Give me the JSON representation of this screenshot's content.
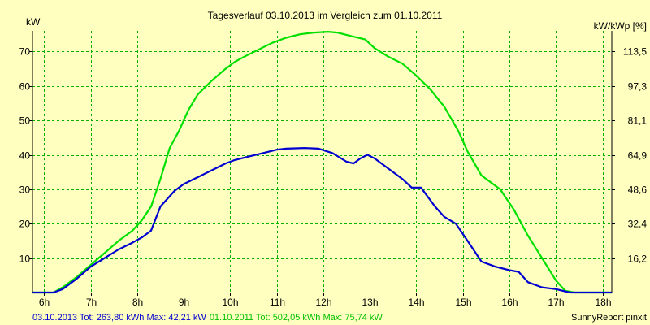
{
  "colors": {
    "background": "#ffffc0",
    "grid": "#00b000",
    "series_2013": "#0000d0",
    "series_2011": "#00e000",
    "axis": "#000000"
  },
  "footer": {
    "legend_2013": "03.10.2013 Tot: 263,80 kWh Max: 42,21 kW",
    "legend_2011": "01.10.2011 Tot: 502,05 kWh Max: 75,74 kW",
    "credit": "SunnyReport pinxit"
  },
  "chart_data": {
    "type": "line",
    "title": "Tagesverlauf 03.10.2013 im Vergleich zum 01.10.2011",
    "ylabel": "kW",
    "ylabel_right": "kW/kWp [%]",
    "xlim": [
      5.75,
      18.2
    ],
    "ylim": [
      0,
      76
    ],
    "x_ticks": [
      6,
      7,
      8,
      9,
      10,
      11,
      12,
      13,
      14,
      15,
      16,
      17,
      18
    ],
    "x_tick_labels": [
      "6h",
      "7h",
      "8h",
      "9h",
      "10h",
      "11h",
      "12h",
      "13h",
      "14h",
      "15h",
      "16h",
      "17h",
      "18h"
    ],
    "y_ticks": [
      10,
      20,
      30,
      40,
      50,
      60,
      70
    ],
    "y_tick_labels": [
      "10",
      "20",
      "30",
      "40",
      "50",
      "60",
      "70"
    ],
    "y2_tick_labels": [
      "16,2",
      "32,4",
      "48,6",
      "64,9",
      "81,1",
      "97,3",
      "113,5"
    ],
    "grid": true,
    "series": [
      {
        "name": "03.10.2013",
        "color": "#0000d0",
        "x": [
          5.75,
          6.2,
          6.4,
          6.7,
          7.0,
          7.3,
          7.6,
          7.9,
          8.1,
          8.3,
          8.5,
          8.8,
          9.0,
          9.3,
          9.6,
          9.9,
          10.1,
          10.4,
          10.7,
          11.0,
          11.2,
          11.6,
          11.9,
          12.2,
          12.5,
          12.65,
          12.8,
          12.95,
          13.1,
          13.4,
          13.7,
          13.9,
          14.1,
          14.4,
          14.6,
          14.85,
          15.1,
          15.4,
          15.7,
          16.0,
          16.2,
          16.4,
          16.7,
          17.0,
          17.3,
          17.6,
          18.2
        ],
        "values": [
          0,
          0,
          1,
          4,
          7.5,
          10,
          12.5,
          14.5,
          16,
          18,
          25,
          29.5,
          31.5,
          33.5,
          35.5,
          37.5,
          38.5,
          39.5,
          40.5,
          41.5,
          41.8,
          42,
          41.8,
          40.5,
          38,
          37.5,
          39,
          40,
          39,
          36,
          33,
          30.5,
          30.5,
          25,
          22,
          20,
          15,
          9,
          7.5,
          6.5,
          6,
          3,
          1.5,
          1,
          0,
          0,
          0
        ]
      },
      {
        "name": "01.10.2011",
        "color": "#00e000",
        "x": [
          5.75,
          6.2,
          6.4,
          6.7,
          7.0,
          7.3,
          7.6,
          7.9,
          8.1,
          8.3,
          8.5,
          8.7,
          8.9,
          9.1,
          9.3,
          9.6,
          9.9,
          10.1,
          10.3,
          10.6,
          10.9,
          11.2,
          11.5,
          11.8,
          12.1,
          12.3,
          12.6,
          12.9,
          13.1,
          13.4,
          13.7,
          14.0,
          14.3,
          14.6,
          14.9,
          15.1,
          15.4,
          15.8,
          16.1,
          16.4,
          16.7,
          17.0,
          17.2,
          17.4,
          17.7,
          18.2
        ],
        "values": [
          0,
          0,
          1.5,
          4.5,
          8,
          11.5,
          15,
          18,
          21,
          25,
          33,
          42,
          47,
          53,
          57.5,
          61.5,
          65,
          67,
          68.5,
          70.5,
          72.5,
          74,
          75,
          75.5,
          75.74,
          75.5,
          74.5,
          73.5,
          71,
          68.5,
          66.5,
          63,
          59,
          54,
          47,
          41,
          34,
          30,
          24,
          16.5,
          10,
          3.5,
          0.5,
          0,
          0,
          0
        ]
      }
    ]
  }
}
